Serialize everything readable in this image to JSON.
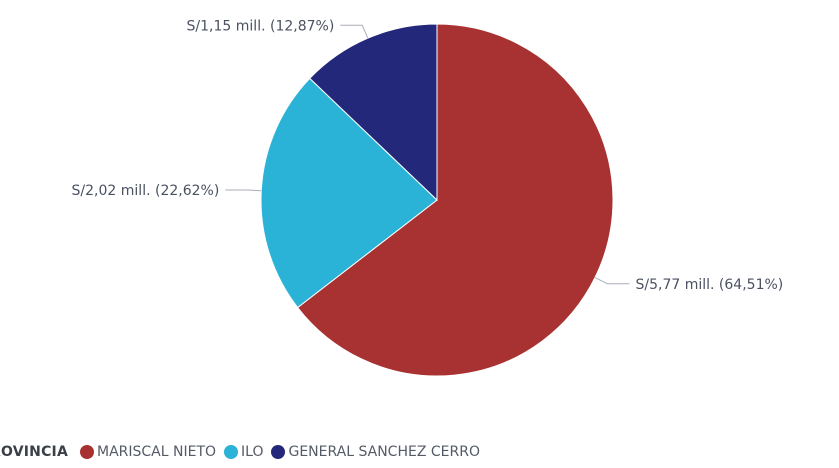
{
  "chart_data": {
    "type": "pie",
    "categories": [
      "MARISCAL NIETO",
      "ILO",
      "GENERAL SANCHEZ CERRO"
    ],
    "values": [
      5.77,
      2.02,
      1.15
    ],
    "percentages": [
      64.51,
      22.62,
      12.87
    ],
    "unit": "mill.",
    "labels": [
      "S/5,77 mill. (64,51%)",
      "S/2,02 mill. (22,62%)",
      "S/1,15 mill. (12,87%)"
    ],
    "colors": [
      "#a83232",
      "#2ab3d6",
      "#23287a"
    ],
    "legend": {
      "title": "ROVINCIA",
      "position": "bottom-left",
      "items": [
        "MARISCAL NIETO",
        "ILO",
        "GENERAL SANCHEZ CERRO"
      ]
    }
  }
}
